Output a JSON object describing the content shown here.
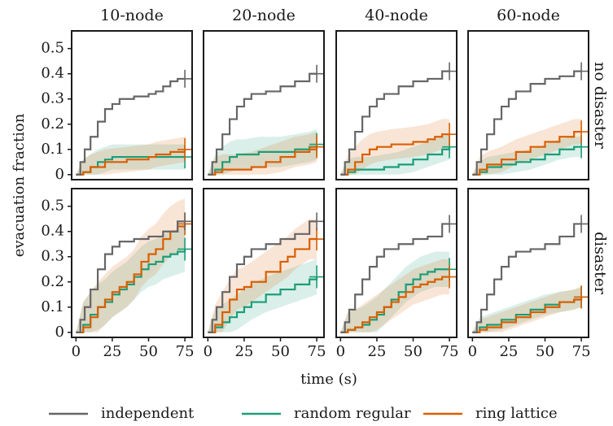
{
  "chart_data": {
    "type": "line",
    "xlabel": "time (s)",
    "ylabel": "evacuation fraction",
    "xlim": [
      -3,
      80
    ],
    "ylim": [
      -0.02,
      0.57
    ],
    "xticks": [
      0,
      25,
      50,
      75
    ],
    "yticks": [
      0,
      0.1,
      0.2,
      0.3,
      0.4,
      0.5
    ],
    "xtick_labels": [
      "0",
      "25",
      "50",
      "75"
    ],
    "ytick_labels": [
      "0",
      "0.1",
      "0.2",
      "0.3",
      "0.4",
      "0.5"
    ],
    "columns": [
      "10-node",
      "20-node",
      "40-node",
      "60-node"
    ],
    "rows": [
      "no disaster",
      "disaster"
    ],
    "grid": false,
    "legend_position": "bottom",
    "legend": [
      {
        "name": "independent",
        "color": "#666666"
      },
      {
        "name": "random regular",
        "color": "#1b9e77"
      },
      {
        "name": "ring lattice",
        "color": "#d95f02"
      }
    ],
    "panels": [
      {
        "row": 0,
        "col": 0,
        "series": [
          {
            "name": "independent",
            "x": [
              0,
              3,
              6,
              10,
              15,
              20,
              25,
              30,
              40,
              50,
              55,
              60,
              65,
              70,
              75
            ],
            "y": [
              0,
              0.05,
              0.1,
              0.15,
              0.21,
              0.26,
              0.28,
              0.3,
              0.31,
              0.32,
              0.33,
              0.35,
              0.37,
              0.38,
              0.38
            ],
            "err": 0.02
          },
          {
            "name": "random regular",
            "x": [
              0,
              5,
              10,
              15,
              20,
              25,
              50,
              75
            ],
            "y": [
              0,
              0.01,
              0.03,
              0.05,
              0.06,
              0.07,
              0.07,
              0.07
            ],
            "err": 0.05
          },
          {
            "name": "ring lattice",
            "x": [
              0,
              5,
              10,
              20,
              35,
              50,
              55,
              65,
              75
            ],
            "y": [
              0,
              0.01,
              0.03,
              0.05,
              0.06,
              0.07,
              0.08,
              0.09,
              0.1
            ],
            "err": 0.05
          }
        ]
      },
      {
        "row": 0,
        "col": 1,
        "series": [
          {
            "name": "independent",
            "x": [
              0,
              3,
              6,
              10,
              15,
              20,
              25,
              30,
              40,
              50,
              60,
              70,
              75
            ],
            "y": [
              0,
              0.05,
              0.1,
              0.16,
              0.22,
              0.27,
              0.3,
              0.32,
              0.33,
              0.35,
              0.37,
              0.4,
              0.4
            ],
            "err": 0.02
          },
          {
            "name": "random regular",
            "x": [
              0,
              5,
              10,
              15,
              20,
              25,
              35,
              50,
              60,
              70,
              75
            ],
            "y": [
              0,
              0.02,
              0.05,
              0.07,
              0.08,
              0.08,
              0.09,
              0.09,
              0.1,
              0.11,
              0.12
            ],
            "err": 0.06
          },
          {
            "name": "ring lattice",
            "x": [
              0,
              5,
              10,
              20,
              30,
              40,
              50,
              60,
              70,
              75
            ],
            "y": [
              0,
              0.01,
              0.02,
              0.02,
              0.03,
              0.05,
              0.07,
              0.09,
              0.1,
              0.11
            ],
            "err": 0.06
          }
        ]
      },
      {
        "row": 0,
        "col": 2,
        "series": [
          {
            "name": "independent",
            "x": [
              0,
              3,
              6,
              10,
              15,
              20,
              25,
              30,
              40,
              50,
              60,
              70,
              75
            ],
            "y": [
              0,
              0.05,
              0.1,
              0.17,
              0.23,
              0.27,
              0.3,
              0.32,
              0.35,
              0.37,
              0.38,
              0.41,
              0.41
            ],
            "err": 0.02
          },
          {
            "name": "random regular",
            "x": [
              0,
              5,
              10,
              20,
              30,
              40,
              50,
              60,
              70,
              75
            ],
            "y": [
              0,
              0.01,
              0.02,
              0.02,
              0.03,
              0.04,
              0.06,
              0.08,
              0.1,
              0.11
            ],
            "err": 0.05
          },
          {
            "name": "ring lattice",
            "x": [
              0,
              5,
              10,
              15,
              20,
              25,
              35,
              50,
              60,
              65,
              70,
              75
            ],
            "y": [
              0,
              0.02,
              0.05,
              0.08,
              0.1,
              0.11,
              0.12,
              0.13,
              0.14,
              0.15,
              0.16,
              0.16
            ],
            "err": 0.06
          }
        ]
      },
      {
        "row": 0,
        "col": 3,
        "series": [
          {
            "name": "independent",
            "x": [
              0,
              3,
              6,
              10,
              15,
              20,
              25,
              30,
              40,
              50,
              60,
              70,
              75
            ],
            "y": [
              0,
              0.05,
              0.1,
              0.16,
              0.22,
              0.27,
              0.3,
              0.33,
              0.36,
              0.38,
              0.39,
              0.41,
              0.41
            ],
            "err": 0.02
          },
          {
            "name": "random regular",
            "x": [
              0,
              5,
              10,
              20,
              30,
              40,
              50,
              60,
              70,
              75
            ],
            "y": [
              0,
              0.01,
              0.03,
              0.04,
              0.05,
              0.06,
              0.08,
              0.1,
              0.11,
              0.11
            ],
            "err": 0.04
          },
          {
            "name": "ring lattice",
            "x": [
              0,
              5,
              10,
              20,
              30,
              40,
              50,
              60,
              70,
              75
            ],
            "y": [
              0,
              0.02,
              0.04,
              0.06,
              0.09,
              0.11,
              0.13,
              0.15,
              0.17,
              0.17
            ],
            "err": 0.05
          }
        ]
      },
      {
        "row": 1,
        "col": 0,
        "series": [
          {
            "name": "independent",
            "x": [
              0,
              3,
              6,
              10,
              15,
              20,
              25,
              30,
              40,
              50,
              60,
              70,
              75
            ],
            "y": [
              0,
              0.05,
              0.1,
              0.17,
              0.25,
              0.31,
              0.34,
              0.36,
              0.37,
              0.38,
              0.4,
              0.44,
              0.44
            ],
            "err": 0.02
          },
          {
            "name": "random regular",
            "x": [
              0,
              5,
              10,
              15,
              20,
              25,
              30,
              35,
              40,
              45,
              50,
              55,
              60,
              65,
              70,
              75
            ],
            "y": [
              0,
              0.03,
              0.07,
              0.1,
              0.12,
              0.15,
              0.17,
              0.19,
              0.22,
              0.25,
              0.27,
              0.28,
              0.3,
              0.31,
              0.32,
              0.33
            ],
            "err": 0.09
          },
          {
            "name": "ring lattice",
            "x": [
              0,
              5,
              10,
              15,
              20,
              25,
              30,
              35,
              40,
              45,
              50,
              55,
              60,
              65,
              70,
              75
            ],
            "y": [
              0,
              0.02,
              0.06,
              0.1,
              0.13,
              0.16,
              0.18,
              0.2,
              0.23,
              0.28,
              0.31,
              0.33,
              0.37,
              0.4,
              0.42,
              0.43
            ],
            "err": 0.1
          }
        ]
      },
      {
        "row": 1,
        "col": 1,
        "series": [
          {
            "name": "independent",
            "x": [
              0,
              3,
              6,
              10,
              15,
              20,
              25,
              30,
              40,
              50,
              60,
              70,
              75
            ],
            "y": [
              0,
              0.05,
              0.1,
              0.16,
              0.22,
              0.27,
              0.3,
              0.33,
              0.35,
              0.37,
              0.39,
              0.44,
              0.44
            ],
            "err": 0.02
          },
          {
            "name": "random regular",
            "x": [
              0,
              5,
              10,
              15,
              20,
              25,
              30,
              40,
              50,
              60,
              70,
              75
            ],
            "y": [
              0,
              0.02,
              0.04,
              0.06,
              0.08,
              0.1,
              0.12,
              0.15,
              0.17,
              0.19,
              0.21,
              0.22
            ],
            "err": 0.07
          },
          {
            "name": "ring lattice",
            "x": [
              0,
              5,
              10,
              15,
              20,
              25,
              30,
              40,
              50,
              55,
              60,
              70,
              75
            ],
            "y": [
              0,
              0.03,
              0.08,
              0.13,
              0.17,
              0.18,
              0.2,
              0.24,
              0.28,
              0.3,
              0.33,
              0.37,
              0.37
            ],
            "err": 0.08
          }
        ]
      },
      {
        "row": 1,
        "col": 2,
        "series": [
          {
            "name": "independent",
            "x": [
              0,
              3,
              6,
              10,
              15,
              20,
              25,
              30,
              40,
              50,
              60,
              70,
              75
            ],
            "y": [
              0,
              0.04,
              0.09,
              0.15,
              0.21,
              0.26,
              0.3,
              0.33,
              0.35,
              0.37,
              0.38,
              0.43,
              0.43
            ],
            "err": 0.02
          },
          {
            "name": "random regular",
            "x": [
              0,
              5,
              10,
              15,
              20,
              25,
              30,
              35,
              40,
              45,
              50,
              55,
              60,
              65,
              70,
              75
            ],
            "y": [
              0,
              0.01,
              0.02,
              0.03,
              0.05,
              0.07,
              0.1,
              0.13,
              0.16,
              0.19,
              0.21,
              0.23,
              0.24,
              0.25,
              0.25,
              0.25
            ],
            "err": 0.07
          },
          {
            "name": "ring lattice",
            "x": [
              0,
              5,
              10,
              15,
              20,
              25,
              30,
              35,
              40,
              45,
              50,
              55,
              60,
              65,
              70,
              75
            ],
            "y": [
              0,
              0.01,
              0.02,
              0.04,
              0.06,
              0.08,
              0.1,
              0.12,
              0.14,
              0.16,
              0.18,
              0.19,
              0.2,
              0.21,
              0.22,
              0.22
            ],
            "err": 0.07
          }
        ]
      },
      {
        "row": 1,
        "col": 3,
        "series": [
          {
            "name": "independent",
            "x": [
              0,
              3,
              6,
              10,
              15,
              20,
              25,
              30,
              40,
              50,
              60,
              70,
              75
            ],
            "y": [
              0,
              0.04,
              0.09,
              0.15,
              0.21,
              0.26,
              0.3,
              0.32,
              0.33,
              0.35,
              0.38,
              0.43,
              0.43
            ],
            "err": 0.02
          },
          {
            "name": "random regular",
            "x": [
              0,
              5,
              10,
              20,
              30,
              40,
              50,
              60,
              70,
              75
            ],
            "y": [
              0,
              0.02,
              0.03,
              0.05,
              0.07,
              0.09,
              0.11,
              0.12,
              0.13,
              0.14
            ],
            "err": 0.04
          },
          {
            "name": "ring lattice",
            "x": [
              0,
              5,
              10,
              20,
              30,
              40,
              50,
              60,
              70,
              75
            ],
            "y": [
              0,
              0.01,
              0.02,
              0.04,
              0.06,
              0.08,
              0.1,
              0.12,
              0.13,
              0.14
            ],
            "err": 0.04
          }
        ]
      }
    ]
  }
}
